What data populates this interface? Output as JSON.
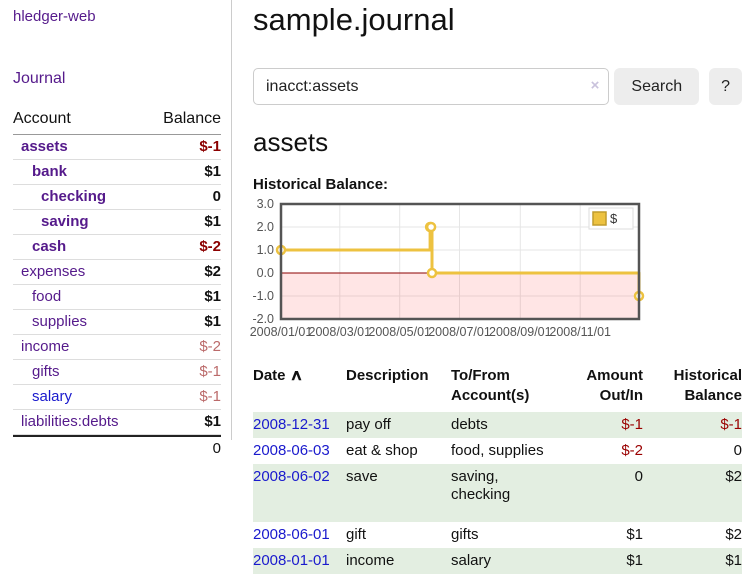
{
  "app": {
    "title": "hledger-web"
  },
  "sidebar": {
    "journal_link": "Journal",
    "account_header": "Account",
    "balance_header": "Balance",
    "accounts": [
      {
        "name": "assets",
        "depth": 1,
        "bold": true,
        "balance": "$-1",
        "balance_style": "neg"
      },
      {
        "name": "bank",
        "depth": 2,
        "bold": true,
        "balance": "$1",
        "balance_style": "pos"
      },
      {
        "name": "checking",
        "depth": 3,
        "bold": true,
        "balance": "0",
        "balance_style": "pos"
      },
      {
        "name": "saving",
        "depth": 3,
        "bold": true,
        "balance": "$1",
        "balance_style": "pos"
      },
      {
        "name": "cash",
        "depth": 2,
        "bold": true,
        "balance": "$-2",
        "balance_style": "neg"
      },
      {
        "name": "expenses",
        "depth": 1,
        "bold": false,
        "balance": "$2",
        "balance_style": "pos"
      },
      {
        "name": "food",
        "depth": 2,
        "bold": false,
        "balance": "$1",
        "balance_style": "pos"
      },
      {
        "name": "supplies",
        "depth": 2,
        "bold": false,
        "balance": "$1",
        "balance_style": "pos"
      },
      {
        "name": "income",
        "depth": 1,
        "bold": false,
        "balance": "$-2",
        "balance_style": "neg-light"
      },
      {
        "name": "gifts",
        "depth": 2,
        "bold": false,
        "balance": "$-1",
        "balance_style": "neg-light"
      },
      {
        "name": "salary",
        "depth": 2,
        "bold": false,
        "balance": "$-1",
        "balance_style": "neg-light",
        "link_color": "blue"
      },
      {
        "name": "liabilities:debts",
        "depth": 1,
        "bold": false,
        "balance": "$1",
        "balance_style": "pos"
      }
    ],
    "total": "0"
  },
  "main": {
    "title": "sample.journal",
    "search": {
      "value": "inacct:assets",
      "clear_icon": "×",
      "search_button": "Search",
      "help_button": "?"
    },
    "account_heading": "assets",
    "chart_label": "Historical Balance:",
    "chart_data": {
      "type": "line",
      "step": true,
      "title": "Historical Balance",
      "ylim": [
        -2,
        3
      ],
      "yticks": [
        3,
        2,
        1,
        0,
        -1,
        -2
      ],
      "x_max_day": 365,
      "xticks": [
        {
          "day": 0,
          "label": "2008/01/01"
        },
        {
          "day": 60,
          "label": "2008/03/01"
        },
        {
          "day": 121,
          "label": "2008/05/01"
        },
        {
          "day": 182,
          "label": "2008/07/01"
        },
        {
          "day": 244,
          "label": "2008/09/01"
        },
        {
          "day": 305,
          "label": "2008/11/01"
        }
      ],
      "series": [
        {
          "name": "$",
          "color": "#EDC240",
          "point_dates": [
            "2008-01-01",
            "2008-06-01",
            "2008-06-02",
            "2008-06-03",
            "2008-12-31"
          ],
          "points": [
            [
              0,
              1
            ],
            [
              152,
              2
            ],
            [
              153,
              2
            ],
            [
              154,
              0
            ],
            [
              365,
              -1
            ]
          ]
        }
      ],
      "grid_color": "#e6e6e6",
      "border_color": "#545454",
      "zero_line_color": "#8b0000",
      "negative_fill": "rgba(255,0,0,0.10)",
      "legend_position": "top-right"
    },
    "register": {
      "headers": [
        "Date",
        "Description",
        "To/From\nAccount(s)",
        "Amount\nOut/In",
        "Historical\nBalance"
      ],
      "sort_icon": "∧",
      "rows": [
        {
          "date": "2008-12-31",
          "description": "pay off",
          "accounts": [
            "debts"
          ],
          "amount": "$-1",
          "amount_neg": true,
          "balance": "$-1",
          "balance_neg": true,
          "tall": false
        },
        {
          "date": "2008-06-03",
          "description": "eat & shop",
          "accounts": [
            "food, supplies"
          ],
          "amount": "$-2",
          "amount_neg": true,
          "balance": "0",
          "balance_neg": false,
          "tall": false
        },
        {
          "date": "2008-06-02",
          "description": "save",
          "accounts": [
            "saving,",
            "checking"
          ],
          "amount": "0",
          "amount_neg": false,
          "balance": "$2",
          "balance_neg": false,
          "tall": true
        },
        {
          "date": "2008-06-01",
          "description": "gift",
          "accounts": [
            "gifts"
          ],
          "amount": "$1",
          "amount_neg": false,
          "balance": "$2",
          "balance_neg": false,
          "tall": false
        },
        {
          "date": "2008-01-01",
          "description": "income",
          "accounts": [
            "salary"
          ],
          "amount": "$1",
          "amount_neg": false,
          "balance": "$1",
          "balance_neg": false,
          "tall": false
        }
      ]
    }
  },
  "colors": {
    "link_purple": "#551a8b",
    "link_blue": "#1a1acd",
    "negative": "#8b0000",
    "negative_light": "#bb6a6a",
    "row_green": "#e3eee1",
    "button_bg": "#ededed",
    "series_gold": "#EDC240"
  }
}
